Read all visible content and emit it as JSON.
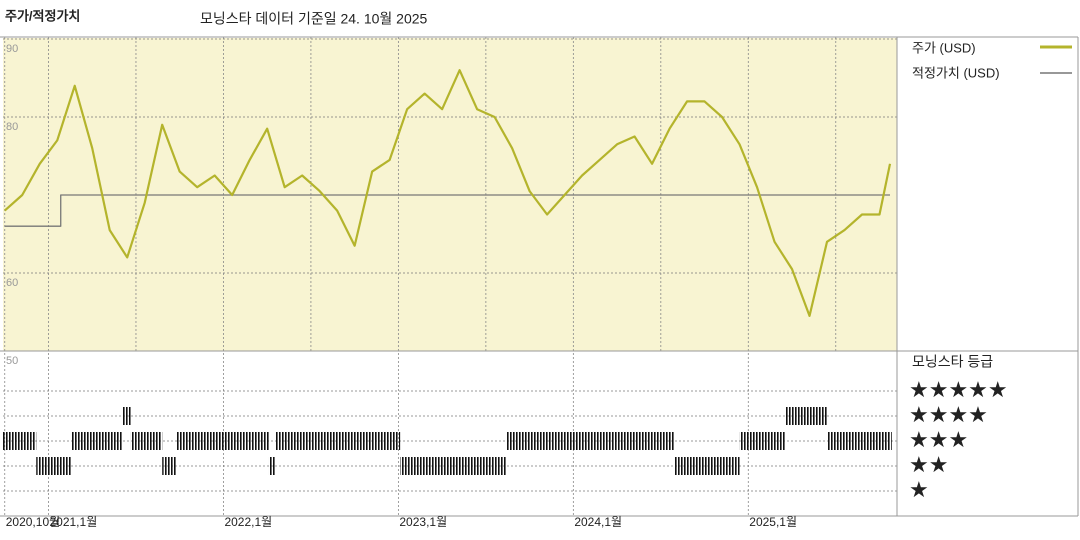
{
  "chart_data": {
    "type": "line",
    "title": "주가/적정가치",
    "subtitle": "모닝스타 데이터 기준일 24. 10월 2025",
    "xlim": [
      2020.74,
      2025.85
    ],
    "xticks": [
      {
        "value": 2020.75,
        "label": "2020,10월"
      },
      {
        "value": 2021,
        "label": "2021,1월"
      },
      {
        "value": 2022,
        "label": "2022,1월"
      },
      {
        "value": 2023,
        "label": "2023,1월"
      },
      {
        "value": 2024,
        "label": "2024,1월"
      },
      {
        "value": 2025,
        "label": "2025,1월"
      }
    ],
    "minor_xticks": [
      2021.5,
      2022.5,
      2023.5,
      2024.5,
      2025.5
    ],
    "ylim": [
      50,
      90
    ],
    "yticks": [
      50,
      60,
      80,
      90
    ],
    "grid": true,
    "series": [
      {
        "name": "주가 (USD)",
        "color": "#b4b42c",
        "x": [
          2020.75,
          2020.85,
          2020.95,
          2021.05,
          2021.15,
          2021.25,
          2021.35,
          2021.45,
          2021.55,
          2021.65,
          2021.75,
          2021.85,
          2021.95,
          2022.05,
          2022.15,
          2022.25,
          2022.35,
          2022.45,
          2022.55,
          2022.65,
          2022.75,
          2022.85,
          2022.95,
          2023.05,
          2023.15,
          2023.25,
          2023.35,
          2023.45,
          2023.55,
          2023.65,
          2023.75,
          2023.85,
          2023.95,
          2024.05,
          2024.15,
          2024.25,
          2024.35,
          2024.45,
          2024.55,
          2024.65,
          2024.75,
          2024.85,
          2024.95,
          2025.05,
          2025.15,
          2025.25,
          2025.35,
          2025.45,
          2025.55,
          2025.65,
          2025.75,
          2025.81
        ],
        "values": [
          68,
          70,
          74,
          77,
          84,
          76,
          65.5,
          62,
          69,
          79,
          73,
          71,
          72.5,
          70,
          74.5,
          78.5,
          71,
          72.5,
          70.5,
          68,
          63.5,
          73,
          74.5,
          81,
          83,
          81,
          86,
          81,
          80,
          76,
          70.5,
          67.5,
          70,
          72.5,
          74.5,
          76.5,
          77.5,
          74,
          78.5,
          82,
          82,
          80,
          76.5,
          71,
          64,
          60.5,
          54.5,
          64,
          65.5,
          67.5,
          67.5,
          74
        ]
      },
      {
        "name": "적정가치 (USD)",
        "color": "#777777",
        "x": [
          2020.75,
          2021.07,
          2021.07,
          2025.81
        ],
        "values": [
          66,
          66,
          70,
          70
        ]
      }
    ],
    "rating": {
      "title": "모닝스타 등급",
      "color": "#111111",
      "levels": [
        {
          "value": 5,
          "label": "★★★★★"
        },
        {
          "value": 4,
          "label": "★★★★"
        },
        {
          "value": 3,
          "label": "★★★"
        },
        {
          "value": 2,
          "label": "★★"
        },
        {
          "value": 1,
          "label": "★"
        }
      ],
      "edges": [
        2020.74,
        2020.93,
        2021.13,
        2021.42,
        2021.47,
        2021.65,
        2021.73,
        2022.26,
        2022.3,
        2023.01,
        2023.62,
        2024.58,
        2024.95,
        2025.21,
        2025.45,
        2025.82
      ],
      "values": [
        3,
        2,
        3,
        4,
        3,
        2,
        3,
        2,
        3,
        2,
        3,
        2,
        3,
        4,
        3
      ]
    }
  }
}
